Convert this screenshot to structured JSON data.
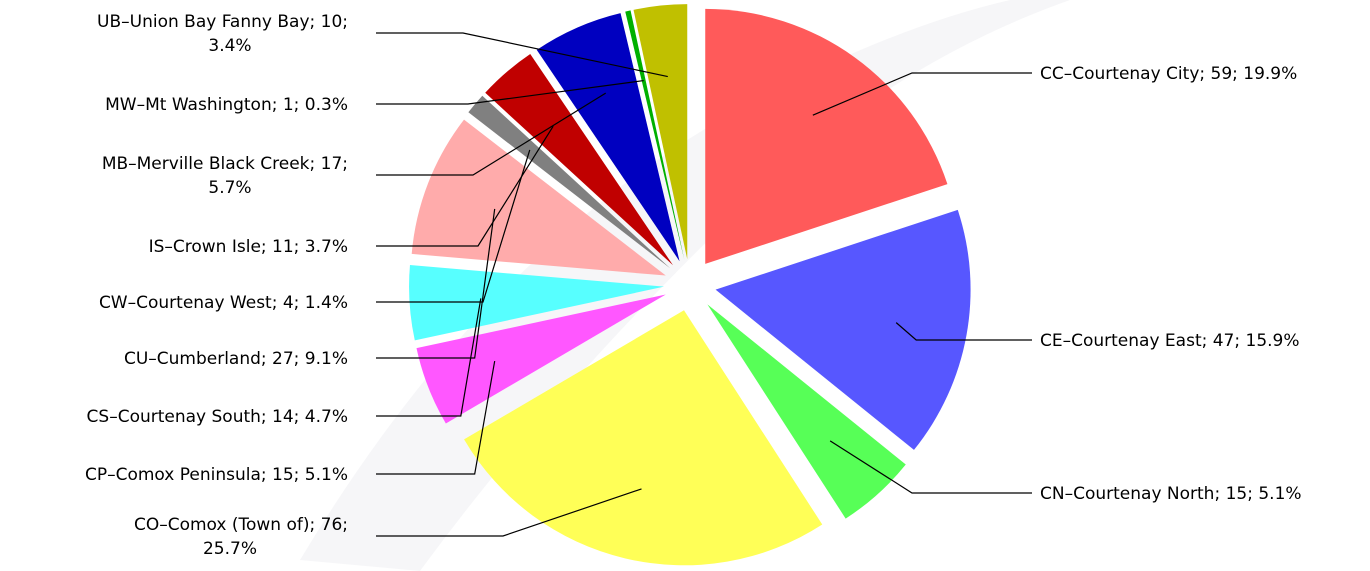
{
  "chart_data": {
    "type": "pie",
    "exploded": true,
    "slices": [
      {
        "code": "CC",
        "name": "Courtenay City",
        "count": 59,
        "percent": 19.9,
        "color": "#ff5a5a",
        "label_lines": [
          "CC–Courtenay City; 59; 19.9%"
        ]
      },
      {
        "code": "CE",
        "name": "Courtenay East",
        "count": 47,
        "percent": 15.9,
        "color": "#5757ff",
        "label_lines": [
          "CE–Courtenay East; 47; 15.9%"
        ]
      },
      {
        "code": "CN",
        "name": "Courtenay North",
        "count": 15,
        "percent": 5.1,
        "color": "#57ff57",
        "label_lines": [
          "CN–Courtenay North; 15; 5.1%"
        ]
      },
      {
        "code": "CO",
        "name": "Comox (Town of)",
        "count": 76,
        "percent": 25.7,
        "color": "#ffff57",
        "label_lines": [
          "CO–Comox (Town of); 76;",
          "25.7%"
        ]
      },
      {
        "code": "CP",
        "name": "Comox Peninsula",
        "count": 15,
        "percent": 5.1,
        "color": "#ff57ff",
        "label_lines": [
          "CP–Comox Peninsula; 15; 5.1%"
        ]
      },
      {
        "code": "CS",
        "name": "Courtenay South",
        "count": 14,
        "percent": 4.7,
        "color": "#57ffff",
        "label_lines": [
          "CS–Courtenay South; 14; 4.7%"
        ]
      },
      {
        "code": "CU",
        "name": "Cumberland",
        "count": 27,
        "percent": 9.1,
        "color": "#ffabab",
        "label_lines": [
          "CU–Cumberland; 27; 9.1%"
        ]
      },
      {
        "code": "CW",
        "name": "Courtenay West",
        "count": 4,
        "percent": 1.4,
        "color": "#808080",
        "label_lines": [
          "CW–Courtenay West; 4; 1.4%"
        ]
      },
      {
        "code": "IS",
        "name": "Crown Isle",
        "count": 11,
        "percent": 3.7,
        "color": "#c00000",
        "label_lines": [
          "IS–Crown Isle; 11; 3.7%"
        ]
      },
      {
        "code": "MB",
        "name": "Merville Black Creek",
        "count": 17,
        "percent": 5.7,
        "color": "#0000c0",
        "label_lines": [
          "MB–Merville Black Creek; 17;",
          "5.7%"
        ]
      },
      {
        "code": "MW",
        "name": "Mt Washington",
        "count": 1,
        "percent": 0.3,
        "color": "#00b000",
        "label_lines": [
          "MW–Mt Washington; 1; 0.3%"
        ]
      },
      {
        "code": "UB",
        "name": "Union Bay Fanny Bay",
        "count": 10,
        "percent": 3.4,
        "color": "#c0c000",
        "label_lines": [
          "UB–Union Bay Fanny Bay; 10;",
          "3.4%"
        ]
      }
    ]
  }
}
